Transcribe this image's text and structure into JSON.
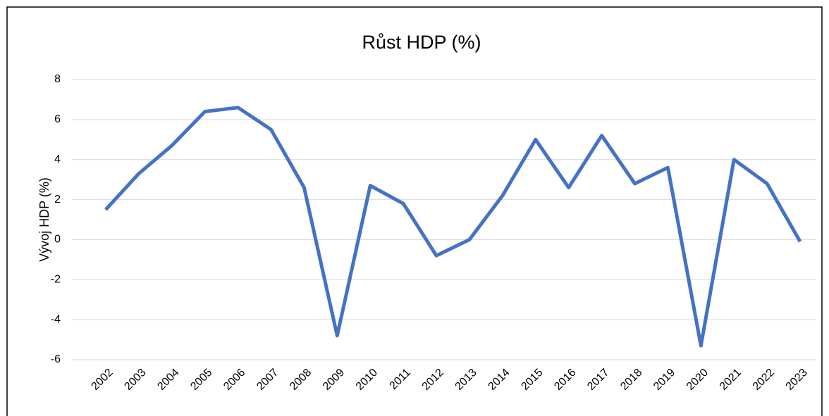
{
  "chart_data": {
    "type": "line",
    "title": "Růst HDP (%)",
    "y_label": "Vývoj HDP (%)",
    "categories": [
      "2002",
      "2003",
      "2004",
      "2005",
      "2006",
      "2007",
      "2008",
      "2009",
      "2010",
      "2011",
      "2012",
      "2013",
      "2014",
      "2015",
      "2016",
      "2017",
      "2018",
      "2019",
      "2020",
      "2021",
      "2022",
      "2023"
    ],
    "series": [
      {
        "name": "Růst HDP",
        "color": "#4472c4",
        "values": [
          1.5,
          3.3,
          4.7,
          6.4,
          6.6,
          5.5,
          2.6,
          -4.8,
          2.7,
          1.8,
          -0.8,
          0.0,
          2.2,
          5.0,
          2.6,
          5.2,
          2.8,
          3.6,
          -5.3,
          4.0,
          2.8,
          -0.1
        ]
      }
    ],
    "ylim": [
      -6,
      8
    ],
    "yticks": [
      -6,
      -4,
      -2,
      0,
      2,
      4,
      6,
      8
    ],
    "grid": true
  }
}
